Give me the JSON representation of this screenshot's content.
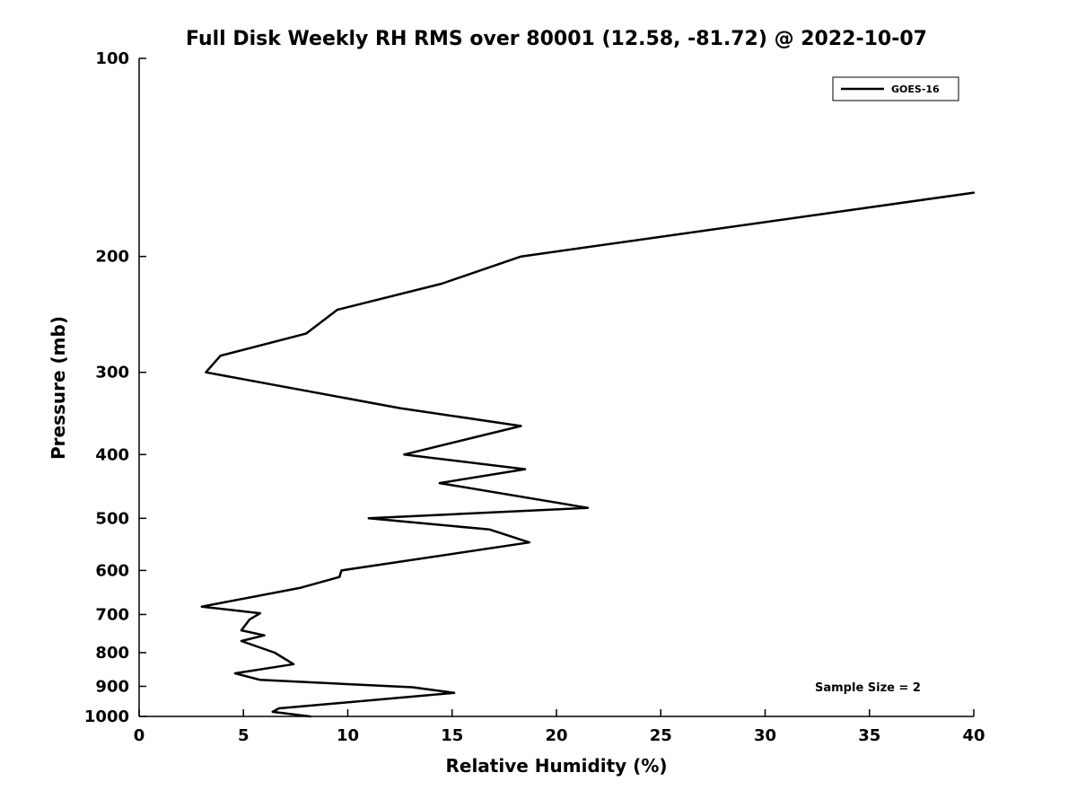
{
  "chart_data": {
    "type": "line",
    "title": "Full Disk Weekly RH RMS over 80001 (12.58, -81.72) @ 2022-10-07",
    "xlabel": "Relative Humidity (%)",
    "ylabel": "Pressure (mb)",
    "xlim": [
      0,
      40
    ],
    "ylim": [
      100,
      1000
    ],
    "y_scale": "log",
    "y_inverted": true,
    "grid": false,
    "x_ticks": [
      0,
      5,
      10,
      15,
      20,
      25,
      30,
      35,
      40
    ],
    "y_ticks": [
      100,
      200,
      300,
      400,
      500,
      600,
      700,
      800,
      900,
      1000
    ],
    "annotation": "Sample Size = 2",
    "line_color": "#000000",
    "legend": {
      "position": "top-right",
      "entries": [
        {
          "label": "GOES-16",
          "color": "#000000"
        }
      ]
    },
    "series": [
      {
        "name": "GOES-16",
        "color": "#000000",
        "points_format": [
          "pressure_mb",
          "rh_percent"
        ],
        "points": [
          [
            160,
            40.0
          ],
          [
            200,
            18.3
          ],
          [
            220,
            14.5
          ],
          [
            241,
            9.5
          ],
          [
            262,
            8.0
          ],
          [
            283,
            3.9
          ],
          [
            300,
            3.2
          ],
          [
            340,
            12.5
          ],
          [
            362,
            18.3
          ],
          [
            400,
            12.7
          ],
          [
            421,
            18.5
          ],
          [
            442,
            14.4
          ],
          [
            482,
            21.5
          ],
          [
            500,
            11.0
          ],
          [
            520,
            16.8
          ],
          [
            544,
            18.7
          ],
          [
            600,
            9.7
          ],
          [
            614,
            9.6
          ],
          [
            638,
            7.7
          ],
          [
            681,
            3.0
          ],
          [
            697,
            5.8
          ],
          [
            712,
            5.3
          ],
          [
            740,
            4.9
          ],
          [
            753,
            6.0
          ],
          [
            768,
            4.9
          ],
          [
            800,
            6.5
          ],
          [
            833,
            7.4
          ],
          [
            860,
            4.6
          ],
          [
            880,
            5.8
          ],
          [
            903,
            13.1
          ],
          [
            921,
            15.1
          ],
          [
            972,
            6.7
          ],
          [
            984,
            6.4
          ],
          [
            1000,
            8.2
          ]
        ]
      }
    ]
  }
}
